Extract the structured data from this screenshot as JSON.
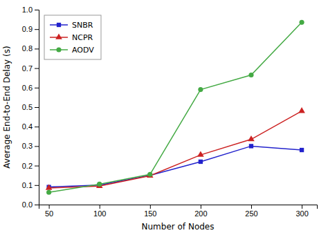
{
  "chart_data": {
    "type": "line",
    "xlabel": "Number of Nodes",
    "ylabel": "Average End-to-End Delay (s)",
    "x": [
      50,
      100,
      150,
      200,
      250,
      300
    ],
    "series": [
      {
        "name": "SNBR",
        "color": "#2222cc",
        "marker": "square",
        "values": [
          0.09,
          0.1,
          0.15,
          0.22,
          0.3,
          0.28
        ]
      },
      {
        "name": "NCPR",
        "color": "#cc2222",
        "marker": "triangle",
        "values": [
          0.085,
          0.095,
          0.148,
          0.255,
          0.335,
          0.48
        ]
      },
      {
        "name": "AODV",
        "color": "#44aa44",
        "marker": "circle",
        "values": [
          0.063,
          0.105,
          0.155,
          0.59,
          0.665,
          0.935
        ]
      }
    ],
    "xlim": [
      40,
      315
    ],
    "ylim": [
      0,
      1.0
    ],
    "xticks": [
      50,
      100,
      150,
      200,
      250,
      300
    ],
    "yticks": [
      {
        "value": 0,
        "label": "0.0"
      },
      0.1,
      0.2,
      0.3,
      0.4,
      0.5,
      0.6,
      0.7,
      0.8,
      0.9,
      {
        "value": 1.0,
        "label": "1.0"
      }
    ],
    "grid": false,
    "legend": "upper left"
  }
}
